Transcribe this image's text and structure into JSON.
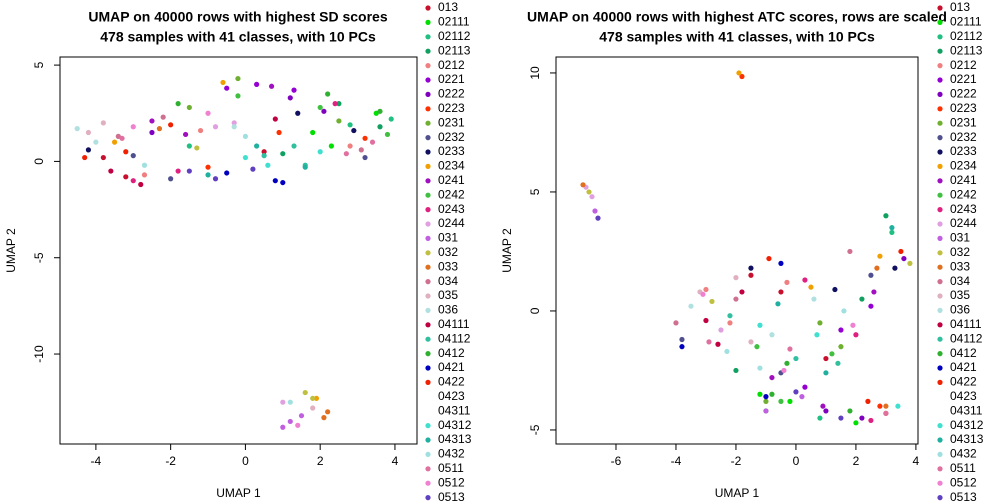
{
  "chart_data": [
    {
      "type": "scatter",
      "title": "UMAP on 40000 rows with highest SD scores",
      "subtitle": "478 samples with 41 classes, with 10 PCs",
      "x_label": "UMAP 1",
      "y_label": "UMAP 2",
      "xlim": [
        -4.96,
        4.59
      ],
      "ylim": [
        -14.67,
        5.42
      ],
      "xticks": [
        -4,
        -2,
        0,
        2,
        4
      ],
      "yticks": [
        5,
        0,
        -5,
        -10
      ],
      "series": [
        {
          "name": "013",
          "color": "#c8102e",
          "x": [
            -3.8,
            -3.2,
            0.5
          ],
          "y": [
            0.2,
            -0.8,
            0.5
          ]
        },
        {
          "name": "02111",
          "color": "#00e000",
          "x": [
            2.3,
            3.5,
            1.8
          ],
          "y": [
            0.8,
            2.5,
            1.5
          ]
        },
        {
          "name": "02112",
          "color": "#20c080",
          "x": [
            3.9,
            2.8,
            -1.5
          ],
          "y": [
            2.2,
            1.9,
            0.8
          ]
        },
        {
          "name": "02113",
          "color": "#10a060",
          "x": [
            3.6,
            1.0,
            2.5
          ],
          "y": [
            1.8,
            0.4,
            3.0
          ]
        },
        {
          "name": "0212",
          "color": "#f08080",
          "x": [
            -2.7,
            -1.2,
            2.8
          ],
          "y": [
            -0.7,
            1.6,
            0.8
          ]
        },
        {
          "name": "0221",
          "color": "#9400d3",
          "x": [
            -0.5,
            0.3,
            1.3
          ],
          "y": [
            3.8,
            4.0,
            3.7
          ]
        },
        {
          "name": "0222",
          "color": "#8000c0",
          "x": [
            1.2,
            2.1,
            -2.5
          ],
          "y": [
            3.3,
            2.6,
            1.5
          ]
        },
        {
          "name": "0223",
          "color": "#ff3000",
          "x": [
            -1.0,
            0.9,
            3.2
          ],
          "y": [
            -0.3,
            1.5,
            1.2
          ]
        },
        {
          "name": "0231",
          "color": "#70b030",
          "x": [
            -1.5,
            -0.2,
            2.5
          ],
          "y": [
            2.8,
            4.3,
            2.1
          ]
        },
        {
          "name": "0232",
          "color": "#505090",
          "x": [
            -2.0,
            3.2,
            -3.0
          ],
          "y": [
            -0.9,
            0.2,
            0.3
          ]
        },
        {
          "name": "0233",
          "color": "#101060",
          "x": [
            2.9,
            -4.2,
            1.4
          ],
          "y": [
            1.6,
            0.6,
            2.5
          ]
        },
        {
          "name": "0234",
          "color": "#f0a000",
          "x": [
            -0.6,
            1.9,
            -3.5
          ],
          "y": [
            4.1,
            -12.3,
            1.0
          ]
        },
        {
          "name": "0241",
          "color": "#a010c0",
          "x": [
            -2.5,
            -1.6,
            0.7
          ],
          "y": [
            2.1,
            1.4,
            3.9
          ]
        },
        {
          "name": "0242",
          "color": "#40c040",
          "x": [
            -0.2,
            2.0,
            3.8
          ],
          "y": [
            3.4,
            2.8,
            1.4
          ]
        },
        {
          "name": "0243",
          "color": "#e02080",
          "x": [
            -3.0,
            -1.8,
            2.4
          ],
          "y": [
            -1.0,
            -0.5,
            3.0
          ]
        },
        {
          "name": "0244",
          "color": "#e0a0e0",
          "x": [
            -0.3,
            -0.8,
            1.0
          ],
          "y": [
            2.0,
            1.8,
            -12.5
          ]
        },
        {
          "name": "031",
          "color": "#c060e0",
          "x": [
            1.2,
            1.5,
            1.0
          ],
          "y": [
            -13.5,
            -13.2,
            -13.8
          ]
        },
        {
          "name": "032",
          "color": "#c0c040",
          "x": [
            1.8,
            -1.3,
            1.6
          ],
          "y": [
            -12.3,
            0.7,
            -12.0
          ]
        },
        {
          "name": "033",
          "color": "#e07020",
          "x": [
            2.1,
            2.2,
            -2.3
          ],
          "y": [
            -13.3,
            -13.0,
            1.7
          ]
        },
        {
          "name": "034",
          "color": "#d07090",
          "x": [
            -3.4,
            -2.2,
            3.1
          ],
          "y": [
            1.3,
            2.3,
            0.6
          ]
        },
        {
          "name": "035",
          "color": "#e0b0c0",
          "x": [
            -4.2,
            -3.8,
            1.8
          ],
          "y": [
            1.5,
            2.0,
            -12.8
          ]
        },
        {
          "name": "036",
          "color": "#b0e0e0",
          "x": [
            -4.5,
            -4.0,
            -0.3
          ],
          "y": [
            1.7,
            1.0,
            1.8
          ]
        },
        {
          "name": "04111",
          "color": "#c00040",
          "x": [
            -3.6,
            -2.8,
            0.8
          ],
          "y": [
            -0.5,
            -1.2,
            2.2
          ]
        },
        {
          "name": "04112",
          "color": "#30c0a0",
          "x": [
            0.5,
            1.3,
            1.6
          ],
          "y": [
            0.3,
            0.8,
            -0.2
          ]
        },
        {
          "name": "0412",
          "color": "#30b030",
          "x": [
            -1.8,
            2.2,
            3.6
          ],
          "y": [
            3.0,
            3.5,
            2.6
          ]
        },
        {
          "name": "0421",
          "color": "#0000c0",
          "x": [
            0.8,
            1.0,
            -0.5
          ],
          "y": [
            -1.0,
            -1.1,
            -0.6
          ]
        },
        {
          "name": "0422",
          "color": "#f02000",
          "x": [
            -3.2,
            -2.0,
            -4.3
          ],
          "y": [
            0.5,
            1.9,
            0.2
          ]
        },
        {
          "name": "0423",
          "color": "#ffffff",
          "x": [
            -3.9
          ],
          "y": [
            0.6
          ]
        },
        {
          "name": "04311",
          "color": "#ffffff",
          "x": [
            -2.6
          ],
          "y": [
            1.0
          ]
        },
        {
          "name": "04312",
          "color": "#40e0d0",
          "x": [
            0.0,
            0.6,
            2.0
          ],
          "y": [
            0.2,
            -0.2,
            0.5
          ]
        },
        {
          "name": "04313",
          "color": "#20b0a0",
          "x": [
            -1.0,
            0.3,
            1.6
          ],
          "y": [
            -0.7,
            0.8,
            -0.3
          ]
        },
        {
          "name": "0432",
          "color": "#a0e0e0",
          "x": [
            1.2,
            0.0,
            -2.7
          ],
          "y": [
            -12.5,
            1.3,
            -0.2
          ]
        },
        {
          "name": "0511",
          "color": "#e070a0",
          "x": [
            2.7,
            3.4,
            -3.3
          ],
          "y": [
            0.4,
            1.0,
            1.2
          ]
        },
        {
          "name": "0512",
          "color": "#f080d0",
          "x": [
            -3.0,
            -1.0,
            1.4
          ],
          "y": [
            1.8,
            2.5,
            -13.7
          ]
        },
        {
          "name": "0513",
          "color": "#6040c0",
          "x": [
            -0.8,
            0.2,
            -1.5
          ],
          "y": [
            -0.9,
            -0.4,
            -0.5
          ]
        }
      ]
    },
    {
      "type": "scatter",
      "title": "UMAP on 40000 rows with highest ATC scores, rows are scaled",
      "subtitle": "478 samples with 41 classes, with 10 PCs",
      "x_label": "UMAP 1",
      "y_label": "UMAP 2",
      "xlim": [
        -8.0,
        4.07
      ],
      "ylim": [
        -5.59,
        10.67
      ],
      "xticks": [
        -6,
        -4,
        -2,
        0,
        2,
        4
      ],
      "yticks": [
        10,
        5,
        0,
        -5
      ],
      "series": [
        {
          "name": "013",
          "color": "#c8102e",
          "x": [
            -1.5,
            -0.5,
            1.0
          ],
          "y": [
            1.5,
            0.8,
            -2.0
          ]
        },
        {
          "name": "02111",
          "color": "#00e000",
          "x": [
            -0.2,
            2.0,
            -1.2
          ],
          "y": [
            -3.8,
            -4.7,
            -3.5
          ]
        },
        {
          "name": "02112",
          "color": "#20c080",
          "x": [
            3.2,
            0.8,
            -1.0
          ],
          "y": [
            3.3,
            -4.5,
            -4.2
          ]
        },
        {
          "name": "02113",
          "color": "#10a060",
          "x": [
            3.0,
            2.2,
            -2.0
          ],
          "y": [
            4.0,
            0.5,
            -2.5
          ]
        },
        {
          "name": "0212",
          "color": "#f08080",
          "x": [
            -3.0,
            -2.2,
            -0.3
          ],
          "y": [
            0.9,
            -0.5,
            1.2
          ]
        },
        {
          "name": "0221",
          "color": "#9400d3",
          "x": [
            1.5,
            2.5,
            0.3
          ],
          "y": [
            -0.8,
            0.2,
            -3.2
          ]
        },
        {
          "name": "0222",
          "color": "#8000c0",
          "x": [
            3.6,
            1.0,
            2.2
          ],
          "y": [
            2.2,
            -4.2,
            -4.5
          ]
        },
        {
          "name": "0223",
          "color": "#ff3000",
          "x": [
            -1.8,
            2.8,
            3.0
          ],
          "y": [
            9.85,
            -4.0,
            -4.3
          ]
        },
        {
          "name": "0231",
          "color": "#70b030",
          "x": [
            -1.0,
            1.5,
            0.8
          ],
          "y": [
            -3.8,
            -1.5,
            -0.5
          ]
        },
        {
          "name": "0232",
          "color": "#505090",
          "x": [
            -3.8,
            2.5,
            -0.5
          ],
          "y": [
            -1.2,
            1.5,
            -2.6
          ]
        },
        {
          "name": "0233",
          "color": "#101060",
          "x": [
            3.3,
            -1.5,
            1.3
          ],
          "y": [
            1.8,
            1.8,
            0.9
          ]
        },
        {
          "name": "0234",
          "color": "#f0a000",
          "x": [
            -1.9,
            2.8,
            0.5
          ],
          "y": [
            10.0,
            2.3,
            1.0
          ]
        },
        {
          "name": "0241",
          "color": "#a010c0",
          "x": [
            0.9,
            2.6,
            -0.8
          ],
          "y": [
            -4.0,
            0.8,
            -2.8
          ]
        },
        {
          "name": "0242",
          "color": "#40c040",
          "x": [
            -0.5,
            -1.3,
            1.2
          ],
          "y": [
            -3.8,
            -1.5,
            -1.8
          ]
        },
        {
          "name": "0243",
          "color": "#e02080",
          "x": [
            2.0,
            0.3,
            2.5
          ],
          "y": [
            -1.0,
            1.3,
            -4.6
          ]
        },
        {
          "name": "0244",
          "color": "#e0a0e0",
          "x": [
            -7.0,
            -6.8,
            -2.5
          ],
          "y": [
            5.2,
            4.8,
            -0.8
          ]
        },
        {
          "name": "031",
          "color": "#c060e0",
          "x": [
            -6.7,
            -1.0,
            0.2
          ],
          "y": [
            4.2,
            -4.2,
            -3.6
          ]
        },
        {
          "name": "032",
          "color": "#c0c040",
          "x": [
            -6.9,
            -2.8,
            3.8
          ],
          "y": [
            5.0,
            0.4,
            2.0
          ]
        },
        {
          "name": "033",
          "color": "#e07020",
          "x": [
            -7.1,
            2.7,
            3.0
          ],
          "y": [
            5.3,
            1.8,
            -4.0
          ]
        },
        {
          "name": "034",
          "color": "#d07090",
          "x": [
            -4.0,
            -2.0,
            1.8
          ],
          "y": [
            -0.5,
            0.5,
            2.5
          ]
        },
        {
          "name": "035",
          "color": "#e0b0c0",
          "x": [
            -3.2,
            -2.0,
            -1.5
          ],
          "y": [
            0.8,
            1.4,
            -1.3
          ]
        },
        {
          "name": "036",
          "color": "#b0e0e0",
          "x": [
            -0.8,
            0.6,
            -3.5
          ],
          "y": [
            -1.0,
            0.5,
            0.2
          ]
        },
        {
          "name": "04111",
          "color": "#c00040",
          "x": [
            -3.0,
            -1.8,
            -2.6
          ],
          "y": [
            -0.4,
            0.8,
            -1.4
          ]
        },
        {
          "name": "04112",
          "color": "#30c0a0",
          "x": [
            -2.2,
            0.0,
            1.4
          ],
          "y": [
            -0.2,
            -2.0,
            -2.2
          ]
        },
        {
          "name": "0412",
          "color": "#30b030",
          "x": [
            -0.8,
            1.8,
            -0.3
          ],
          "y": [
            -3.5,
            -4.2,
            -2.2
          ]
        },
        {
          "name": "0421",
          "color": "#0000c0",
          "x": [
            -1.0,
            -0.5,
            -3.8
          ],
          "y": [
            -3.6,
            2.0,
            -1.5
          ]
        },
        {
          "name": "0422",
          "color": "#f02000",
          "x": [
            -0.9,
            2.4,
            3.5
          ],
          "y": [
            2.2,
            -3.8,
            2.5
          ]
        },
        {
          "name": "0423",
          "color": "#ffffff",
          "x": [
            1.0
          ],
          "y": [
            -3.0
          ]
        },
        {
          "name": "04311",
          "color": "#ffffff",
          "x": [
            -1.5
          ],
          "y": [
            -2.0
          ]
        },
        {
          "name": "04312",
          "color": "#40e0d0",
          "x": [
            -1.2,
            3.4,
            0.7
          ],
          "y": [
            -0.6,
            -4.0,
            -1.0
          ]
        },
        {
          "name": "04313",
          "color": "#20b0a0",
          "x": [
            -0.6,
            3.2,
            1.0
          ],
          "y": [
            0.3,
            3.5,
            -2.6
          ]
        },
        {
          "name": "0432",
          "color": "#a0e0e0",
          "x": [
            -2.3,
            -1.2,
            1.6
          ],
          "y": [
            -1.7,
            -2.4,
            0.0
          ]
        },
        {
          "name": "0511",
          "color": "#e070a0",
          "x": [
            -2.9,
            -0.2,
            3.0
          ],
          "y": [
            -1.3,
            -1.6,
            -4.3
          ]
        },
        {
          "name": "0512",
          "color": "#f080d0",
          "x": [
            -3.1,
            -0.4,
            1.9
          ],
          "y": [
            0.7,
            -2.5,
            -0.6
          ]
        },
        {
          "name": "0513",
          "color": "#6040c0",
          "x": [
            0.0,
            -6.6,
            1.5
          ],
          "y": [
            -3.4,
            3.9,
            -4.5
          ]
        }
      ]
    }
  ]
}
